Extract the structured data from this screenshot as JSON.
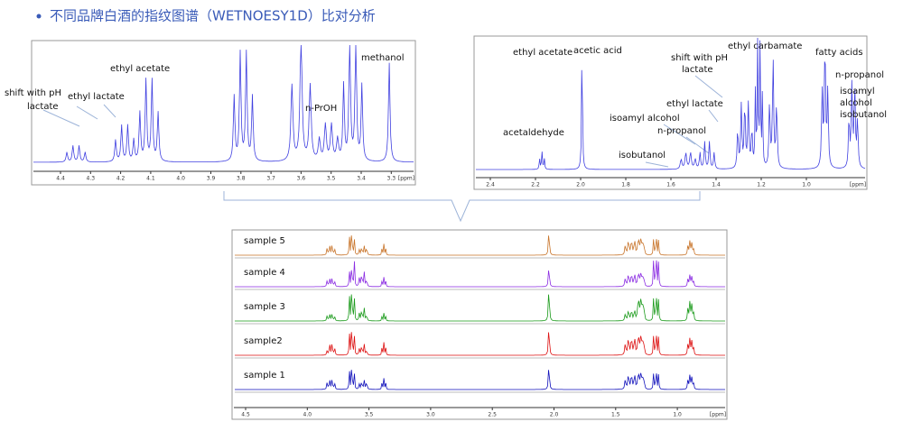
{
  "title": "不同品牌白酒的指纹图谱（WETNOESY1D）比对分析",
  "panels": [
    {
      "labels": [
        "shift with pH",
        "lactate",
        "ethyl lactate",
        "ethyl acetate",
        "n-PrOH",
        "methanol"
      ],
      "ticks": [
        "4.4",
        "4.3",
        "4.2",
        "4.1",
        "4.0",
        "3.9",
        "3.8",
        "3.7",
        "3.6",
        "3.5",
        "3.4",
        "3.3"
      ],
      "unit": "[ppm]"
    },
    {
      "labels": [
        "ethyl acetate",
        "acetic acid",
        "shift with pH",
        "lactate",
        "ethyl carbamate",
        "fatty acids",
        "n-propanol",
        "isoamyl",
        "alcohol",
        "isobutanol",
        "ethyl lactate",
        "isoamyl alcohol",
        "n-propanol",
        "acetaldehyde",
        "isobutanol"
      ],
      "ticks": [
        "2.4",
        "2.2",
        "2.0",
        "1.8",
        "1.6",
        "1.4",
        "1.2",
        "1.0"
      ],
      "unit": "[ppm]"
    }
  ],
  "stack": {
    "samples": [
      "sample 5",
      "sample 4",
      "sample 3",
      "sample2",
      "sample 1"
    ],
    "ticks": [
      "4.5",
      "4.0",
      "3.5",
      "3.0",
      "2.5",
      "2.0",
      "1.5",
      "1.0"
    ],
    "unit": "[ppm]"
  }
}
